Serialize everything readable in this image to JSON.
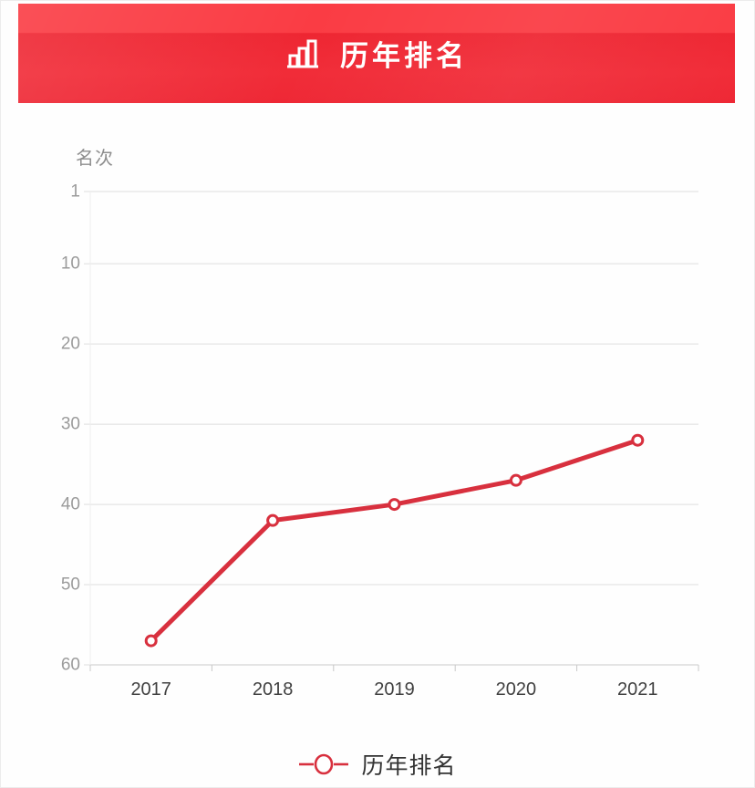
{
  "header": {
    "title": "历年排名",
    "icon": "bar-chart-icon",
    "banner_top_color": "#fa3c44",
    "banner_main_color": "#ee2632",
    "title_color": "#ffffff"
  },
  "chart_data": {
    "type": "line",
    "title": "历年排名",
    "ylabel": "名次",
    "x": [
      "2017",
      "2018",
      "2019",
      "2020",
      "2021"
    ],
    "series": [
      {
        "name": "历年排名",
        "values": [
          57,
          42,
          40,
          37,
          32
        ]
      }
    ],
    "y_ticks": [
      1,
      10,
      20,
      30,
      40,
      50,
      60
    ],
    "ylim": [
      1,
      60
    ],
    "y_axis_inverted": true,
    "grid": "horizontal-only",
    "legend_position": "bottom",
    "line_color": "#d8303e",
    "marker_fill": "#ffffff",
    "grid_color": "#dedede",
    "axis_line_color": "#c9c9c9",
    "y_axis_line_color": "#ededed",
    "y_tick_label_color": "#9b9b9b",
    "x_tick_label_color": "#404040"
  },
  "legend": {
    "label": "历年排名"
  }
}
